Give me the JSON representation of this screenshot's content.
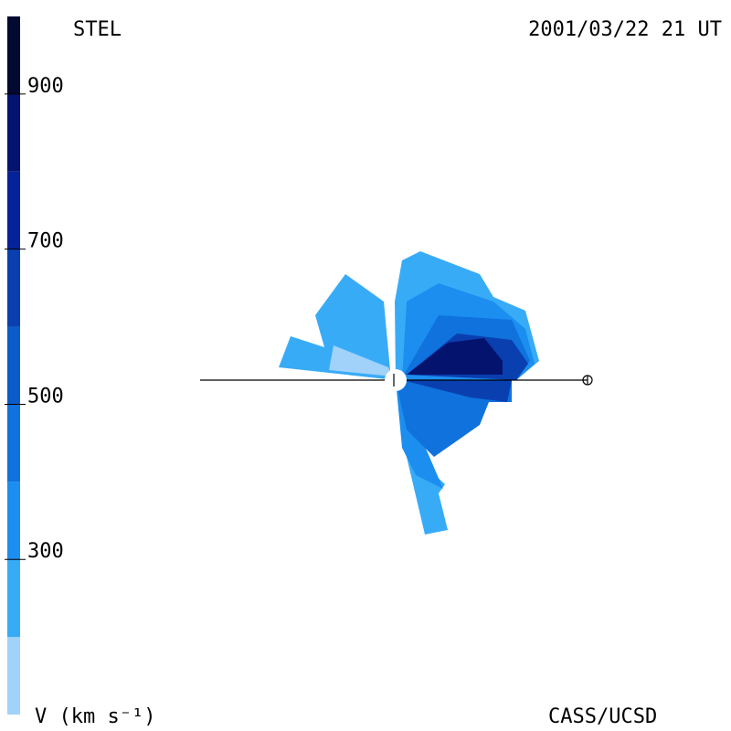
{
  "chart_data": {
    "type": "colorbar-map",
    "title": "STEL",
    "date": "2001/03/22 21 UT",
    "credit": "CASS/UCSD",
    "colorbar_label": "V (km s⁻¹)",
    "ylim": [
      100,
      1000
    ],
    "yticks": [
      300,
      500,
      700,
      900
    ],
    "bins": [
      100,
      200,
      300,
      400,
      500,
      600,
      700,
      800,
      900,
      1000
    ],
    "colors": [
      "#a0d2fa",
      "#38abf7",
      "#1b8ef0",
      "#0f72dd",
      "#0b5bc9",
      "#0a3fb0",
      "#06229a",
      "#04146e",
      "#020a30"
    ]
  }
}
